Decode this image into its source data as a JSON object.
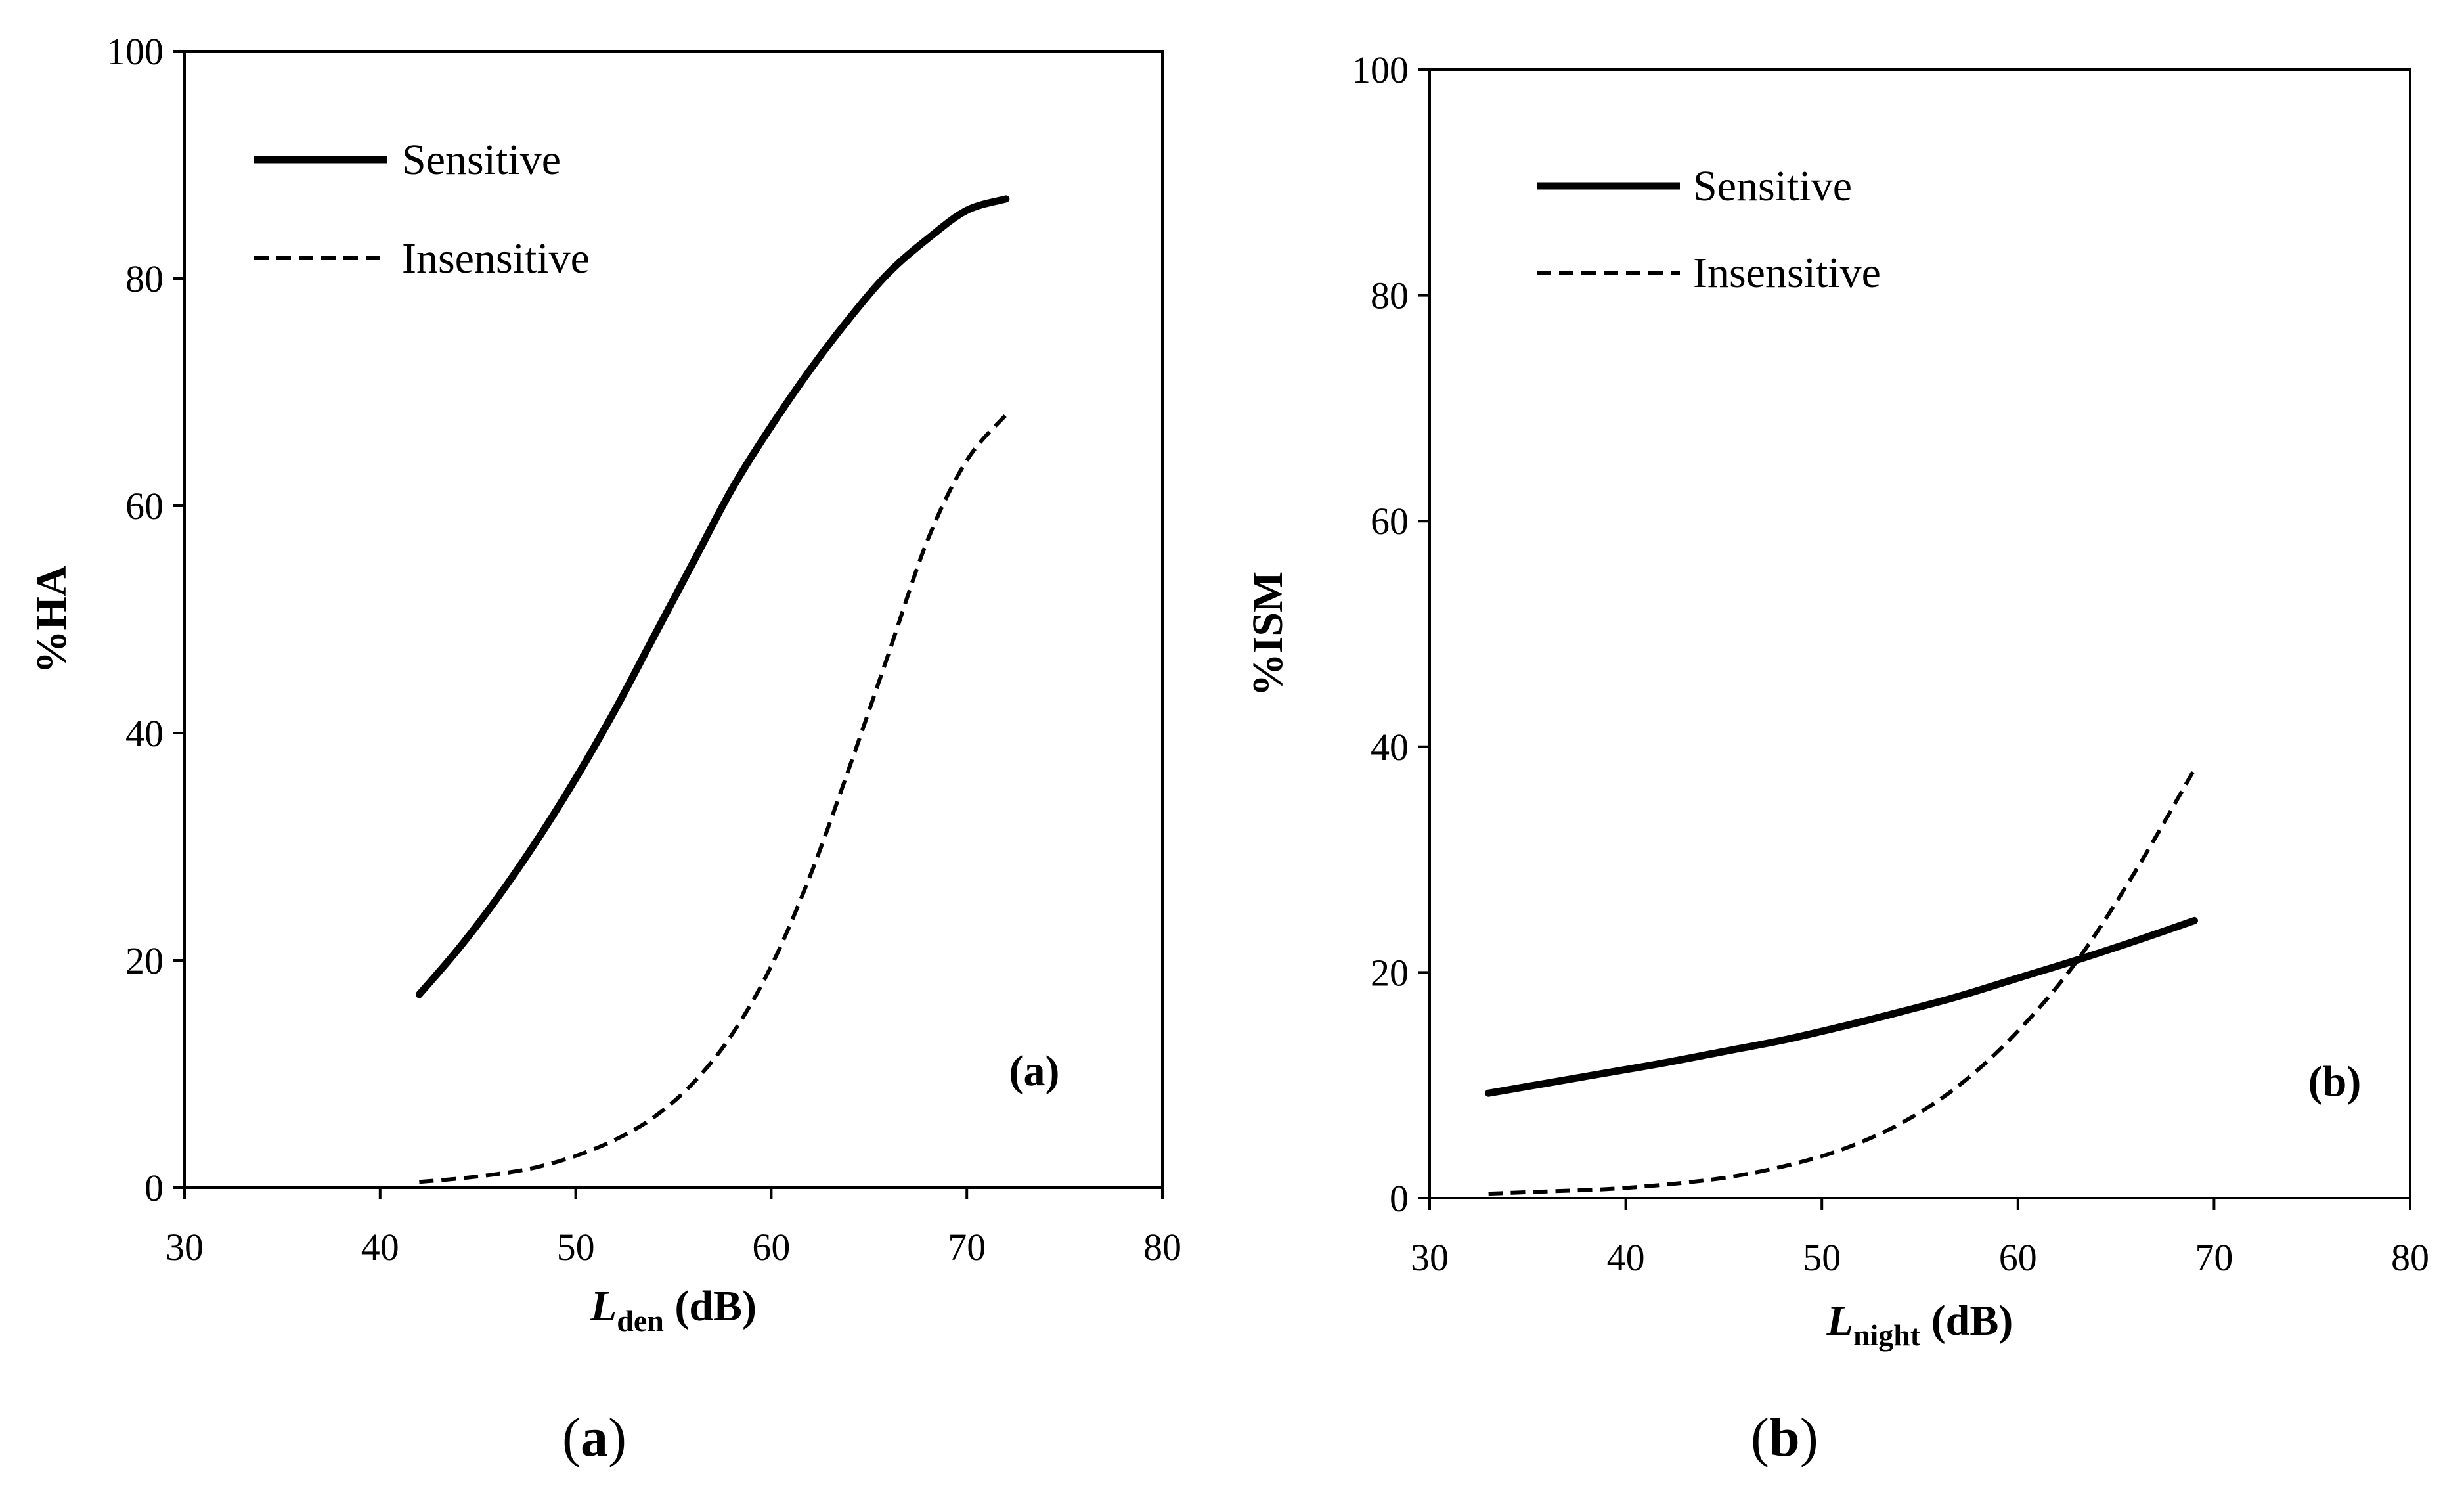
{
  "chart_data": [
    {
      "type": "line",
      "panel_label": "(a)",
      "caption_open": "(",
      "caption_letter": "a",
      "caption_close": ")",
      "xlabel_main": "L",
      "xlabel_sub": "den",
      "xlabel_unit": " (dB)",
      "ylabel": "%HA",
      "xlim": [
        30,
        80
      ],
      "ylim": [
        0,
        100
      ],
      "xticks": [
        30,
        40,
        50,
        60,
        70,
        80
      ],
      "yticks": [
        0,
        20,
        40,
        60,
        80,
        100
      ],
      "legend": [
        "Sensitive",
        "Insensitive"
      ],
      "legend_position": "top-left",
      "series": [
        {
          "name": "Sensitive",
          "style": "solid",
          "x": [
            42,
            44,
            46,
            48,
            50,
            52,
            54,
            56,
            58,
            60,
            62,
            64,
            66,
            68,
            70,
            72
          ],
          "y": [
            17,
            21,
            25.5,
            30.5,
            36,
            42,
            48.5,
            55,
            61.5,
            67,
            72,
            76.5,
            80.5,
            83.5,
            86,
            87
          ]
        },
        {
          "name": "Insensitive",
          "style": "dashed",
          "x": [
            42,
            44,
            46,
            48,
            50,
            52,
            54,
            56,
            58,
            60,
            62,
            64,
            66,
            68,
            70,
            72
          ],
          "y": [
            0.5,
            0.8,
            1.2,
            1.8,
            2.8,
            4.2,
            6.2,
            9.2,
            13.5,
            19.5,
            27.5,
            37,
            47,
            57,
            64,
            68
          ]
        }
      ]
    },
    {
      "type": "line",
      "panel_label": "(b)",
      "caption_open": "(",
      "caption_letter": "b",
      "caption_close": ")",
      "xlabel_main": "L",
      "xlabel_sub": "night",
      "xlabel_unit": " (dB)",
      "ylabel": "%ISM",
      "xlim": [
        30,
        80
      ],
      "ylim": [
        0,
        100
      ],
      "xticks": [
        30,
        40,
        50,
        60,
        70,
        80
      ],
      "yticks": [
        0,
        20,
        40,
        60,
        80,
        100
      ],
      "legend": [
        "Sensitive",
        "Insensitive"
      ],
      "legend_position": "top-left",
      "series": [
        {
          "name": "Sensitive",
          "style": "solid",
          "x": [
            33,
            36,
            39,
            42,
            45,
            48,
            51,
            54,
            57,
            60,
            63,
            66,
            69
          ],
          "y": [
            9.3,
            10.2,
            11.1,
            12,
            13,
            14,
            15.2,
            16.5,
            17.9,
            19.5,
            21.1,
            22.8,
            24.6
          ]
        },
        {
          "name": "Insensitive",
          "style": "dashed",
          "x": [
            33,
            36,
            39,
            42,
            45,
            48,
            51,
            54,
            57,
            60,
            63,
            66,
            69
          ],
          "y": [
            0.4,
            0.6,
            0.8,
            1.2,
            1.8,
            2.8,
            4.3,
            6.6,
            10,
            14.8,
            21,
            29,
            38
          ]
        }
      ]
    }
  ]
}
